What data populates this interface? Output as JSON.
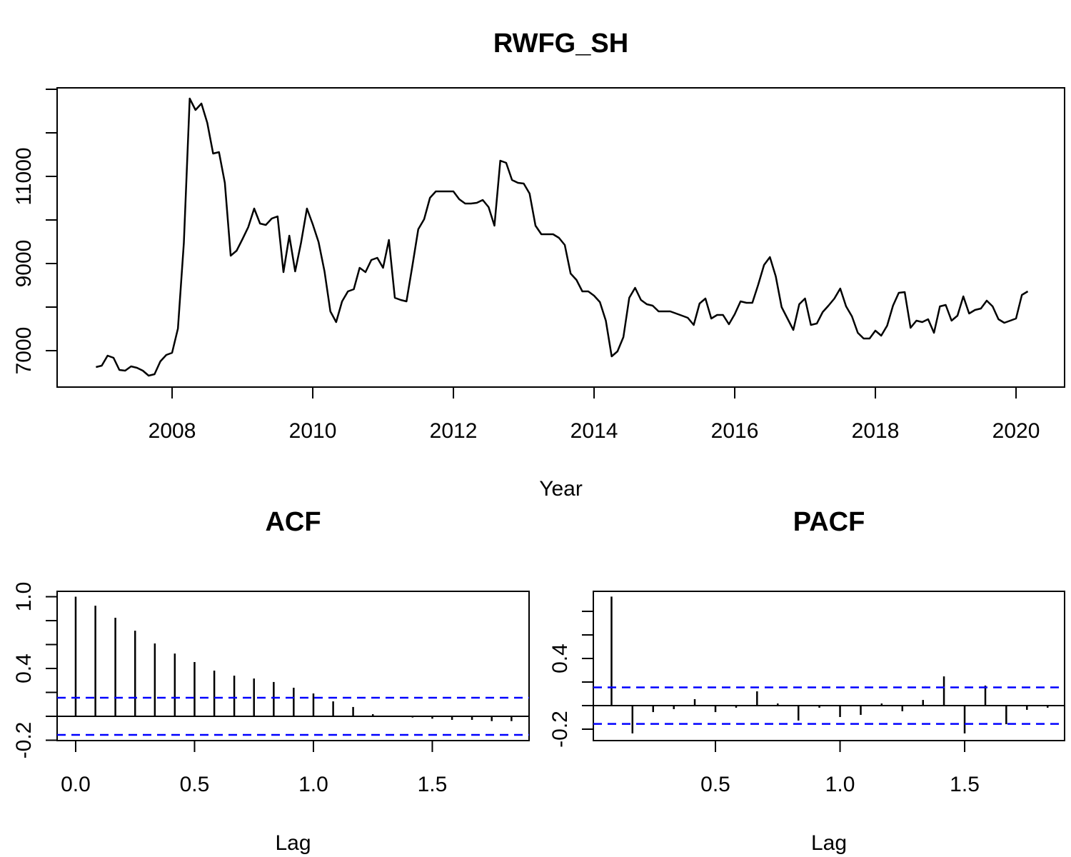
{
  "chart_data": [
    {
      "type": "line",
      "title": "RWFG_SH",
      "xlabel": "Year",
      "color": "#000000",
      "x": [
        2006.917,
        2007,
        2007.083,
        2007.167,
        2007.25,
        2007.333,
        2007.417,
        2007.5,
        2007.583,
        2007.667,
        2007.75,
        2007.833,
        2007.917,
        2008,
        2008.083,
        2008.167,
        2008.25,
        2008.333,
        2008.417,
        2008.5,
        2008.583,
        2008.667,
        2008.75,
        2008.833,
        2008.917,
        2009,
        2009.083,
        2009.167,
        2009.25,
        2009.333,
        2009.417,
        2009.5,
        2009.583,
        2009.667,
        2009.75,
        2009.833,
        2009.917,
        2010,
        2010.083,
        2010.167,
        2010.25,
        2010.333,
        2010.417,
        2010.5,
        2010.583,
        2010.667,
        2010.75,
        2010.833,
        2010.917,
        2011,
        2011.083,
        2011.167,
        2011.25,
        2011.333,
        2011.417,
        2011.5,
        2011.583,
        2011.667,
        2011.75,
        2011.833,
        2011.917,
        2012,
        2012.083,
        2012.167,
        2012.25,
        2012.333,
        2012.417,
        2012.5,
        2012.583,
        2012.667,
        2012.75,
        2012.833,
        2012.917,
        2013,
        2013.083,
        2013.167,
        2013.25,
        2013.333,
        2013.417,
        2013.5,
        2013.583,
        2013.667,
        2013.75,
        2013.833,
        2013.917,
        2014,
        2014.083,
        2014.167,
        2014.25,
        2014.333,
        2014.417,
        2014.5,
        2014.583,
        2014.667,
        2014.75,
        2014.833,
        2014.917,
        2015,
        2015.083,
        2015.167,
        2015.25,
        2015.333,
        2015.417,
        2015.5,
        2015.583,
        2015.667,
        2015.75,
        2015.833,
        2015.917,
        2016,
        2016.083,
        2016.167,
        2016.25,
        2016.333,
        2016.417,
        2016.5,
        2016.583,
        2016.667,
        2016.75,
        2016.833,
        2016.917,
        2017,
        2017.083,
        2017.167,
        2017.25,
        2017.333,
        2017.417,
        2017.5,
        2017.583,
        2017.667,
        2017.75,
        2017.833,
        2017.917,
        2018,
        2018.083,
        2018.167,
        2018.25,
        2018.333,
        2018.417,
        2018.5,
        2018.583,
        2018.667,
        2018.75,
        2018.833,
        2018.917,
        2019,
        2019.083,
        2019.167,
        2019.25,
        2019.333,
        2019.417,
        2019.5,
        2019.583,
        2019.667,
        2019.75,
        2019.833,
        2019.917,
        2020,
        2020.083,
        2020.167
      ],
      "values": [
        6623,
        6656,
        6885,
        6836,
        6557,
        6541,
        6639,
        6607,
        6541,
        6426,
        6459,
        6754,
        6902,
        6951,
        7508,
        9475,
        12787,
        12525,
        12672,
        12230,
        11525,
        11557,
        10852,
        9180,
        9295,
        9557,
        9836,
        10262,
        9918,
        9885,
        10033,
        10082,
        8803,
        9639,
        8820,
        9475,
        10262,
        9902,
        9492,
        8820,
        7902,
        7656,
        8131,
        8361,
        8410,
        8902,
        8803,
        9082,
        9131,
        8902,
        9541,
        8213,
        8164,
        8131,
        8951,
        9787,
        10016,
        10508,
        10656,
        10656,
        10656,
        10656,
        10475,
        10377,
        10377,
        10393,
        10459,
        10295,
        9869,
        11361,
        11311,
        10918,
        10852,
        10836,
        10607,
        9869,
        9672,
        9672,
        9672,
        9590,
        9426,
        8770,
        8623,
        8361,
        8361,
        8262,
        8115,
        7689,
        6869,
        6984,
        7311,
        8213,
        8443,
        8164,
        8066,
        8033,
        7902,
        7902,
        7902,
        7852,
        7803,
        7754,
        7590,
        8082,
        8197,
        7738,
        7820,
        7820,
        7607,
        7836,
        8131,
        8098,
        8098,
        8508,
        8967,
        9148,
        8705,
        8000,
        7738,
        7475,
        8066,
        8197,
        7590,
        7623,
        7885,
        8033,
        8197,
        8426,
        8016,
        7787,
        7410,
        7279,
        7279,
        7459,
        7344,
        7574,
        8033,
        8328,
        8344,
        7525,
        7689,
        7656,
        7721,
        7410,
        8016,
        8049,
        7689,
        7803,
        8246,
        7852,
        7934,
        7967,
        8148,
        8016,
        7721,
        7639,
        7689,
        7738,
        8279,
        8361
      ],
      "xlim": [
        2006.365,
        2020.69
      ],
      "ylim": [
        6164,
        13033
      ],
      "xticks": [
        2008,
        2010,
        2012,
        2014,
        2016,
        2018,
        2020
      ],
      "yticks": [
        7000,
        9000,
        11000
      ],
      "yminor": [
        8000,
        10000,
        12000,
        13000
      ]
    },
    {
      "type": "stem",
      "title": "ACF",
      "xlabel": "Lag",
      "color": "#000000",
      "x": [
        0,
        0.083,
        0.167,
        0.25,
        0.333,
        0.417,
        0.5,
        0.583,
        0.667,
        0.75,
        0.833,
        0.917,
        1,
        1.083,
        1.167,
        1.25,
        1.333,
        1.417,
        1.5,
        1.583,
        1.667,
        1.75,
        1.833
      ],
      "values": [
        1,
        0.925,
        0.824,
        0.716,
        0.609,
        0.525,
        0.454,
        0.382,
        0.34,
        0.316,
        0.287,
        0.239,
        0.191,
        0.125,
        0.078,
        0.018,
        0.006,
        -0.01,
        -0.02,
        -0.03,
        -0.03,
        -0.04,
        -0.04
      ],
      "xlim": [
        -0.078,
        1.907
      ],
      "ylim": [
        -0.203,
        1.045
      ],
      "xticks": [
        {
          "value": 0,
          "label": "0.0"
        },
        0.5,
        {
          "value": 1,
          "label": "1.0"
        },
        1.5
      ],
      "yticks": [
        {
          "value": -0.2,
          "label": "-0.2"
        },
        0.4,
        {
          "value": 1,
          "label": "1.0"
        }
      ],
      "yminor": [
        0,
        0.2,
        0.6,
        0.8
      ],
      "ci": [
        0.155,
        -0.155
      ],
      "ci_color": "#0000ff"
    },
    {
      "type": "stem",
      "title": "PACF",
      "xlabel": "Lag",
      "color": "#000000",
      "x": [
        0.083,
        0.167,
        0.25,
        0.333,
        0.417,
        0.5,
        0.583,
        0.667,
        0.75,
        0.833,
        0.917,
        1,
        1.083,
        1.167,
        1.25,
        1.333,
        1.417,
        1.5,
        1.583,
        1.667,
        1.75,
        1.833
      ],
      "values": [
        0.925,
        -0.236,
        -0.055,
        -0.03,
        0.055,
        -0.055,
        -0.018,
        0.121,
        0.018,
        -0.127,
        -0.018,
        -0.097,
        -0.079,
        0.018,
        -0.048,
        0.048,
        0.248,
        -0.236,
        0.17,
        -0.158,
        -0.036,
        -0.018
      ],
      "xlim": [
        0.01,
        1.901
      ],
      "ylim": [
        -0.297,
        0.97
      ],
      "xticks": [
        0.5,
        {
          "value": 1,
          "label": "1.0"
        },
        1.5
      ],
      "yticks": [
        -0.2,
        0.4
      ],
      "yminor": [
        0,
        0.2,
        0.6,
        0.8
      ],
      "ci": [
        0.155,
        -0.155
      ],
      "ci_color": "#0000ff"
    }
  ]
}
